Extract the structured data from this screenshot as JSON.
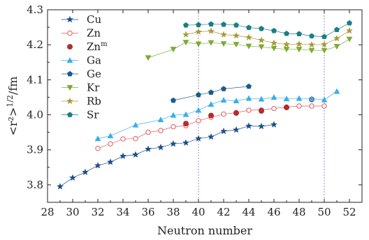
{
  "chart_data": {
    "type": "scatter",
    "xlabel": "Neutron number",
    "ylabel": "<r²>^1/2/fm",
    "xlim": [
      28,
      53
    ],
    "ylim": [
      3.75,
      4.3
    ],
    "xticks": [
      28,
      30,
      32,
      34,
      36,
      38,
      40,
      42,
      44,
      46,
      48,
      50,
      52
    ],
    "yticks": [
      3.8,
      3.9,
      4.0,
      4.1,
      4.2,
      4.3
    ],
    "reference_lines_x": [
      40,
      50
    ],
    "legend_position": "top-left",
    "grid": false,
    "series": [
      {
        "name": "Cu",
        "color": "#1a4e8a",
        "marker": "star-filled",
        "connected": true,
        "x": [
          29,
          30,
          31,
          32,
          33,
          34,
          35,
          36,
          37,
          38,
          39,
          40,
          41,
          42,
          43,
          44,
          45,
          46
        ],
        "y": [
          3.795,
          3.82,
          3.836,
          3.855,
          3.865,
          3.882,
          3.886,
          3.902,
          3.907,
          3.917,
          3.92,
          3.932,
          3.937,
          3.953,
          3.957,
          3.968,
          3.967,
          3.972
        ]
      },
      {
        "name": "Zn",
        "color": "#e05a5a",
        "marker": "circle-open",
        "connected": true,
        "x": [
          32,
          33,
          34,
          35,
          36,
          37,
          38,
          39,
          40,
          41,
          42,
          43,
          44,
          45,
          46,
          47,
          48,
          49,
          50
        ],
        "y": [
          3.904,
          3.917,
          3.931,
          3.932,
          3.95,
          3.955,
          3.966,
          3.969,
          3.983,
          3.993,
          4.002,
          4.006,
          4.013,
          4.014,
          4.018,
          4.022,
          4.025,
          4.025,
          4.025
        ]
      },
      {
        "name": "Zn",
        "name_superscript": "m",
        "color": "#c0282d",
        "marker": "circle-filled",
        "connected": false,
        "x": [
          39,
          41,
          43,
          45,
          47,
          49
        ],
        "y": [
          3.975,
          3.998,
          4.005,
          4.011,
          4.021,
          4.044
        ]
      },
      {
        "name": "Ga",
        "color": "#3aaee8",
        "marker": "triangle-up",
        "connected": true,
        "x": [
          32,
          33,
          35,
          37,
          38,
          39,
          40,
          41,
          42,
          43,
          44,
          45,
          46,
          47,
          48,
          49,
          50,
          51
        ],
        "y": [
          3.932,
          3.94,
          3.971,
          3.986,
          3.999,
          4.001,
          4.013,
          4.03,
          4.042,
          4.04,
          4.047,
          4.045,
          4.05,
          4.046,
          4.047,
          4.046,
          4.043,
          4.067
        ]
      },
      {
        "name": "Ge",
        "color": "#1b5a8f",
        "marker": "pentagon",
        "connected": true,
        "x": [
          38,
          40,
          41,
          42,
          44
        ],
        "y": [
          4.041,
          4.057,
          4.064,
          4.074,
          4.081
        ]
      },
      {
        "name": "Kr",
        "color": "#7cab34",
        "marker": "triangle-down",
        "connected": true,
        "x": [
          36,
          38,
          39,
          40,
          41,
          42,
          43,
          44,
          45,
          46,
          47,
          48,
          49,
          50,
          51,
          52
        ],
        "y": [
          4.163,
          4.187,
          4.207,
          4.202,
          4.206,
          4.203,
          4.201,
          4.196,
          4.194,
          4.19,
          4.187,
          4.187,
          4.184,
          4.184,
          4.195,
          4.216
        ]
      },
      {
        "name": "Rb",
        "color": "#a89a3a",
        "marker": "star-filled",
        "connected": true,
        "x": [
          39,
          40,
          41,
          42,
          43,
          44,
          45,
          46,
          47,
          48,
          49,
          50,
          51,
          52
        ],
        "y": [
          4.229,
          4.237,
          4.239,
          4.229,
          4.226,
          4.221,
          4.213,
          4.205,
          4.201,
          4.202,
          4.2,
          4.201,
          4.218,
          4.24
        ]
      },
      {
        "name": "Sr",
        "color": "#1a7f86",
        "marker": "pentagon",
        "connected": true,
        "x": [
          39,
          40,
          41,
          42,
          43,
          44,
          45,
          46,
          47,
          48,
          49,
          50,
          51,
          52
        ],
        "y": [
          4.256,
          4.257,
          4.259,
          4.258,
          4.256,
          4.249,
          4.246,
          4.24,
          4.232,
          4.231,
          4.225,
          4.223,
          4.243,
          4.262
        ]
      }
    ]
  }
}
